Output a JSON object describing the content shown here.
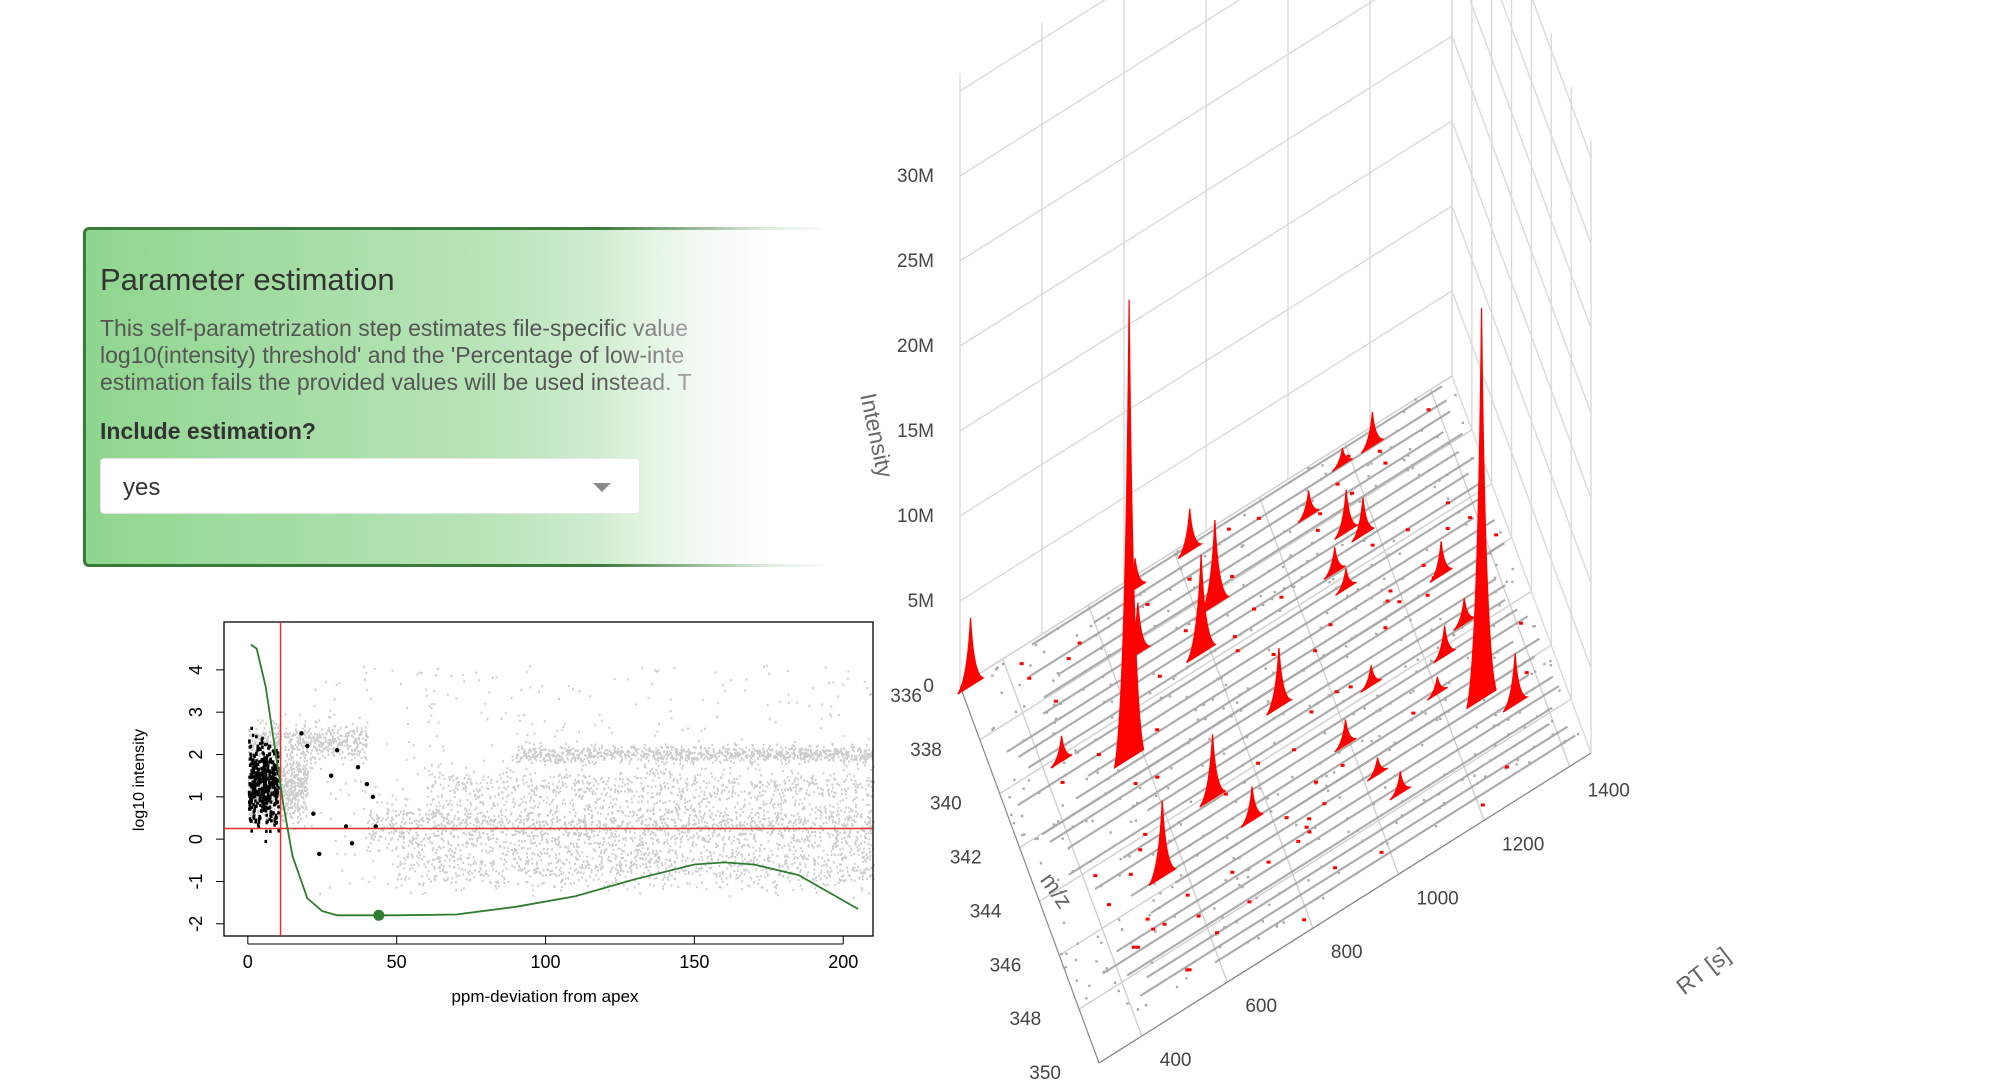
{
  "panel": {
    "title": "Parameter estimation",
    "description_lines": [
      "This self-parametrization step estimates file-specific value",
      "log10(intensity) threshold' and the 'Percentage of low-inte",
      "estimation fails the provided values will be used instead. T"
    ],
    "question": "Include estimation?",
    "select_value": "yes"
  },
  "chart_data": [
    {
      "type": "scatter",
      "xlabel": "ppm-deviation from apex",
      "ylabel": "log10 intensity",
      "xlim": [
        -8,
        210
      ],
      "ylim": [
        -2.1,
        4.8
      ],
      "xticks": [
        0,
        50,
        100,
        150,
        200
      ],
      "yticks": [
        -2,
        -1,
        0,
        1,
        2,
        3,
        4
      ],
      "threshold_x": 11,
      "threshold_y": 0.25,
      "marked_point": {
        "x": 44,
        "y": -1.8
      },
      "colors": {
        "background_points": "#cccccc",
        "selected_points": "#000000",
        "curve": "#2e7d2e",
        "threshold": "#e03030"
      },
      "series": [
        {
          "values_desc": "background",
          "kind": "scatter"
        },
        {
          "kind": "curve",
          "x": [
            1,
            3,
            6,
            9,
            12,
            15,
            20,
            25,
            30,
            40,
            50,
            70,
            90,
            110,
            130,
            150,
            160,
            170,
            185,
            195,
            205
          ],
          "y": [
            4.6,
            4.5,
            3.6,
            2.2,
            0.8,
            -0.4,
            -1.4,
            -1.7,
            -1.8,
            -1.8,
            -1.8,
            -1.78,
            -1.6,
            -1.35,
            -0.95,
            -0.6,
            -0.55,
            -0.6,
            -0.85,
            -1.25,
            -1.65
          ]
        },
        {
          "kind": "scatter",
          "x": [
            18,
            20,
            22,
            24,
            28,
            30,
            33,
            35,
            37,
            40,
            42,
            43
          ],
          "y": [
            2.5,
            2.2,
            0.6,
            -0.35,
            1.5,
            2.1,
            0.3,
            -0.1,
            1.7,
            1.3,
            1.0,
            0.3
          ]
        }
      ]
    },
    {
      "type": "3d-line",
      "xlabel": "RT [s]",
      "ylabel": "m/z",
      "zlabel": "Intensity",
      "rt_ticks": [
        400,
        600,
        800,
        1000,
        1200,
        1400
      ],
      "mz_ticks": [
        336,
        338,
        340,
        342,
        344,
        346,
        348,
        350
      ],
      "intensity_ticks": [
        "0",
        "5M",
        "10M",
        "15M",
        "20M",
        "25M",
        "30M"
      ],
      "colors": {
        "peaks": "#ff0000",
        "traces": "#999999"
      },
      "peaks": [
        {
          "mz": 336.2,
          "rt": 320,
          "intensity": 4000000
        },
        {
          "mz": 336.4,
          "rt": 700,
          "intensity": 1800000
        },
        {
          "mz": 336.3,
          "rt": 830,
          "intensity": 2500000
        },
        {
          "mz": 336.6,
          "rt": 1180,
          "intensity": 1000000
        },
        {
          "mz": 336.6,
          "rt": 1250,
          "intensity": 2000000
        },
        {
          "mz": 337.5,
          "rt": 1080,
          "intensity": 1500000
        },
        {
          "mz": 338.4,
          "rt": 660,
          "intensity": 3000000
        },
        {
          "mz": 338.4,
          "rt": 840,
          "intensity": 5000000
        },
        {
          "mz": 338.7,
          "rt": 1140,
          "intensity": 2500000
        },
        {
          "mz": 339.1,
          "rt": 1170,
          "intensity": 2200000
        },
        {
          "mz": 339.6,
          "rt": 780,
          "intensity": 5800000
        },
        {
          "mz": 339.7,
          "rt": 1090,
          "intensity": 1500000
        },
        {
          "mz": 340.2,
          "rt": 440,
          "intensity": 1500000
        },
        {
          "mz": 340.4,
          "rt": 1100,
          "intensity": 1200000
        },
        {
          "mz": 341.4,
          "rt": 570,
          "intensity": 27000000
        },
        {
          "mz": 341.8,
          "rt": 1290,
          "intensity": 2000000
        },
        {
          "mz": 342.7,
          "rt": 890,
          "intensity": 3500000
        },
        {
          "mz": 343.7,
          "rt": 1300,
          "intensity": 1500000
        },
        {
          "mz": 343.8,
          "rt": 1080,
          "intensity": 1200000
        },
        {
          "mz": 344.2,
          "rt": 700,
          "intensity": 3800000
        },
        {
          "mz": 344.3,
          "rt": 1240,
          "intensity": 1800000
        },
        {
          "mz": 345.1,
          "rt": 990,
          "intensity": 1500000
        },
        {
          "mz": 345.3,
          "rt": 1200,
          "intensity": 1000000
        },
        {
          "mz": 345.6,
          "rt": 550,
          "intensity": 4500000
        },
        {
          "mz": 345.6,
          "rt": 760,
          "intensity": 2000000
        },
        {
          "mz": 346.3,
          "rt": 1280,
          "intensity": 23000000
        },
        {
          "mz": 346.6,
          "rt": 1030,
          "intensity": 1000000
        },
        {
          "mz": 347.1,
          "rt": 1340,
          "intensity": 3000000
        },
        {
          "mz": 347.6,
          "rt": 1060,
          "intensity": 1300000
        }
      ]
    }
  ]
}
